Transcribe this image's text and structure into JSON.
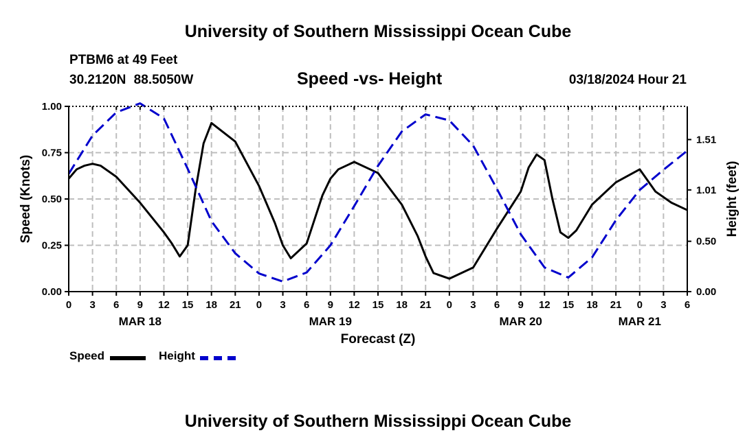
{
  "header": {
    "title": "University of Southern Mississippi Ocean Cube",
    "station": "PTBM6 at 49 Feet",
    "coords": "30.2120N  88.5050W",
    "chart_title": "Speed -vs- Height",
    "date": "03/18/2024 Hour 21"
  },
  "footer": {
    "title": "University of Southern Mississippi Ocean Cube"
  },
  "legend": {
    "speed_label": "Speed",
    "height_label": "Height",
    "speed_color": "#000000",
    "height_color": "#0000cc"
  },
  "chart_data": {
    "type": "line",
    "title": "Speed -vs- Height",
    "xlabel": "Forecast (Z)",
    "ylabel": "Speed (Knots)",
    "y2label": "Height (feet)",
    "x_range_hours": [
      0,
      78
    ],
    "ylim": [
      0,
      1
    ],
    "y2lim": [
      0,
      1.84
    ],
    "y_ticks": [
      "0.00",
      "0.25",
      "0.50",
      "0.75",
      "1.00"
    ],
    "y_tick_values": [
      0,
      0.25,
      0.5,
      0.75,
      1.0
    ],
    "y2_ticks": [
      "0.00",
      "0.50",
      "1.01",
      "1.51"
    ],
    "y2_tick_values": [
      0,
      0.5,
      1.01,
      1.51
    ],
    "x_ticks": [
      "0",
      "3",
      "6",
      "9",
      "12",
      "15",
      "18",
      "21",
      "0",
      "3",
      "6",
      "9",
      "12",
      "15",
      "18",
      "21",
      "0",
      "3",
      "6",
      "9",
      "12",
      "15",
      "18",
      "21",
      "0",
      "3",
      "6"
    ],
    "x_tick_hours": [
      0,
      3,
      6,
      9,
      12,
      15,
      18,
      21,
      24,
      27,
      30,
      33,
      36,
      39,
      42,
      45,
      48,
      51,
      54,
      57,
      60,
      63,
      66,
      69,
      72,
      75,
      78
    ],
    "date_labels": [
      "MAR 18",
      "MAR 19",
      "MAR 20",
      "MAR 21"
    ],
    "date_label_hours": [
      9,
      33,
      57,
      72
    ],
    "grid": true,
    "legend_position": "bottom-left",
    "series": [
      {
        "name": "Speed",
        "axis": "left",
        "color": "#000000",
        "style": "solid",
        "x": [
          0,
          1,
          2,
          3,
          4,
          6,
          9,
          12,
          13,
          14,
          15,
          16,
          17,
          18,
          21,
          24,
          25,
          26,
          27,
          28,
          30,
          32,
          33,
          34,
          36,
          39,
          42,
          44,
          45,
          46,
          48,
          51,
          54,
          57,
          58,
          59,
          60,
          61,
          62,
          63,
          64,
          66,
          69,
          72,
          74,
          76,
          78
        ],
        "values": [
          0.61,
          0.66,
          0.68,
          0.69,
          0.68,
          0.62,
          0.48,
          0.32,
          0.26,
          0.19,
          0.25,
          0.55,
          0.8,
          0.91,
          0.81,
          0.57,
          0.47,
          0.37,
          0.25,
          0.18,
          0.26,
          0.52,
          0.61,
          0.66,
          0.7,
          0.64,
          0.47,
          0.3,
          0.19,
          0.1,
          0.07,
          0.13,
          0.34,
          0.54,
          0.67,
          0.74,
          0.71,
          0.5,
          0.32,
          0.29,
          0.33,
          0.47,
          0.59,
          0.66,
          0.54,
          0.48,
          0.44
        ]
      },
      {
        "name": "Height",
        "axis": "right",
        "color": "#0000cc",
        "style": "dashed",
        "x": [
          0,
          3,
          6,
          9,
          12,
          15,
          18,
          21,
          24,
          27,
          30,
          33,
          36,
          39,
          42,
          45,
          48,
          51,
          54,
          57,
          60,
          63,
          66,
          69,
          72,
          75,
          78
        ],
        "values": [
          1.17,
          1.55,
          1.78,
          1.87,
          1.72,
          1.22,
          0.7,
          0.38,
          0.18,
          0.1,
          0.19,
          0.46,
          0.85,
          1.25,
          1.59,
          1.76,
          1.7,
          1.45,
          1.02,
          0.57,
          0.24,
          0.14,
          0.34,
          0.71,
          1.01,
          1.21,
          1.4
        ]
      }
    ]
  }
}
